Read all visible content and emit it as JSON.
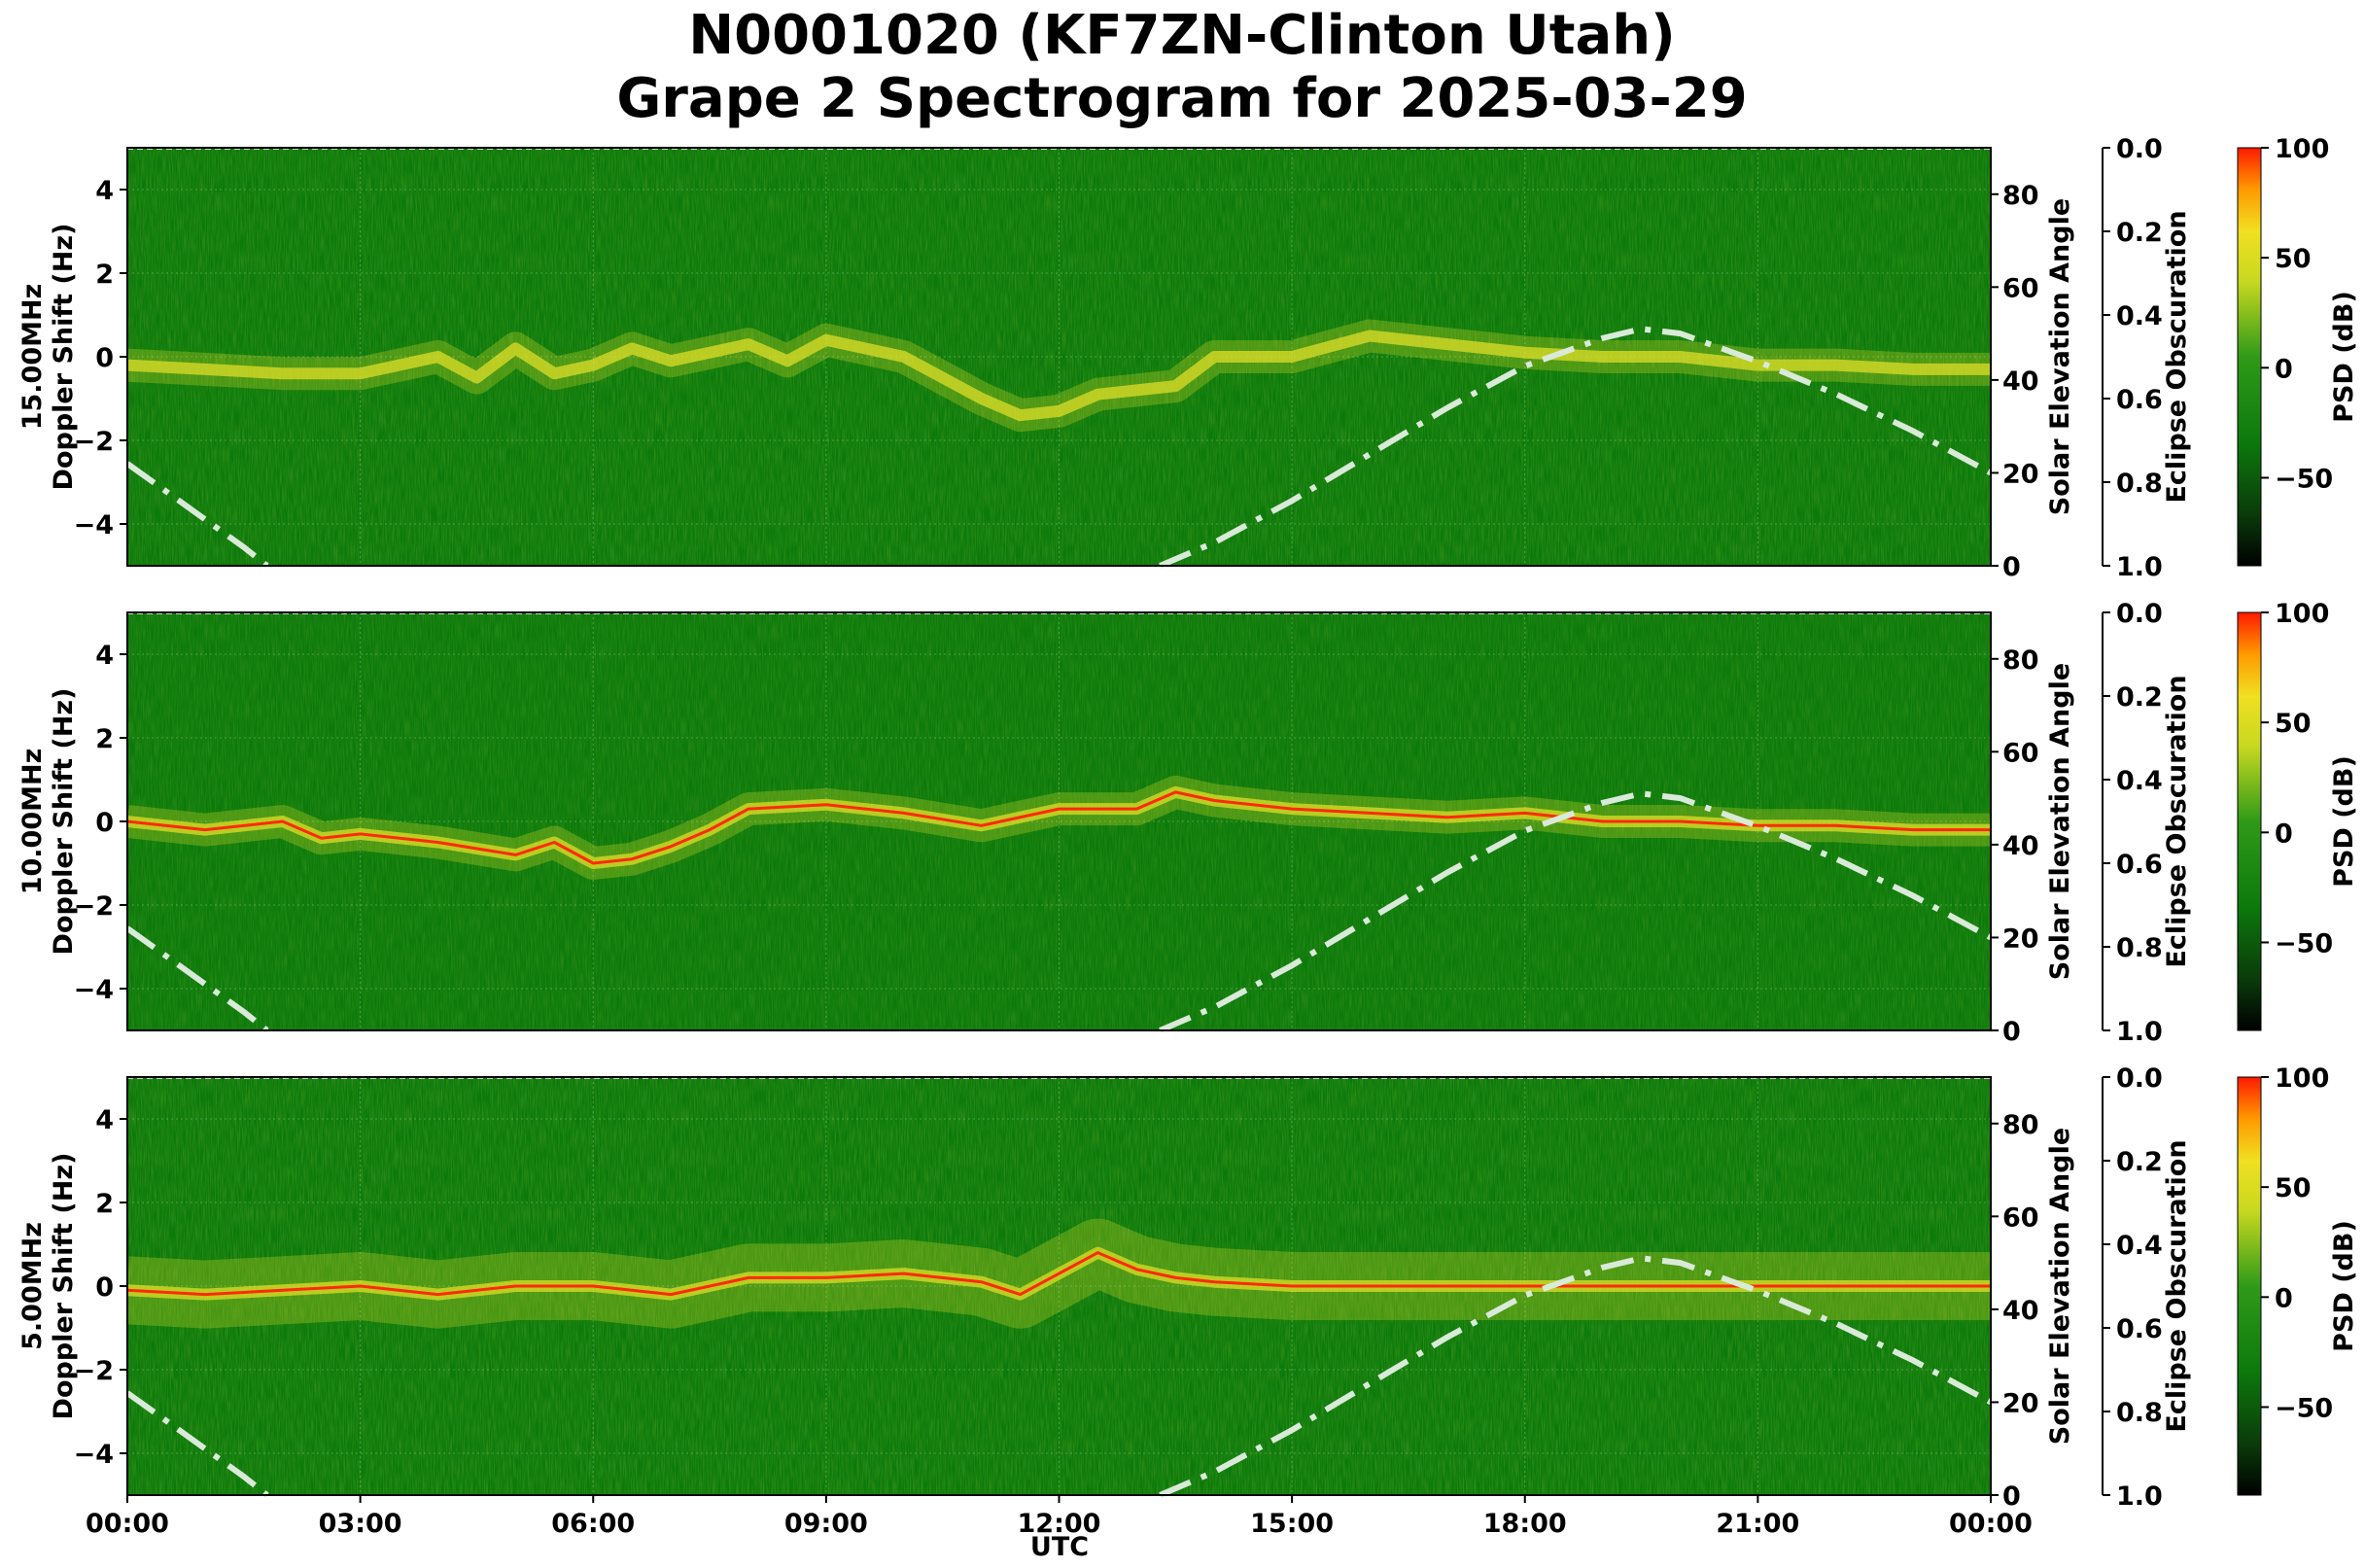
{
  "title_line1": "N0001020 (KF7ZN-Clinton Utah)",
  "title_line2": "Grape 2 Spectrogram for 2025-03-29",
  "x_axis_label": "UTC",
  "x_tick_labels": [
    "00:00",
    "03:00",
    "06:00",
    "09:00",
    "12:00",
    "15:00",
    "18:00",
    "21:00",
    "00:00"
  ],
  "colors": {
    "background_green": "#0b7a0b",
    "signal_yellow": "#e8e22a",
    "signal_red": "#ff2a00",
    "solar_curve": "#d9ead9"
  },
  "chart_data": [
    {
      "type": "heatmap",
      "frequency_label": "15.00MHz",
      "ylabel": "Doppler Shift (Hz)",
      "ylim": [
        -5,
        5
      ],
      "y_ticks": [
        4,
        2,
        0,
        -2,
        -4
      ],
      "x_hours_range": [
        0,
        24
      ],
      "right_axis": {
        "label": "Solar Elevation Angle",
        "ylim": [
          0,
          90
        ],
        "ticks": [
          0,
          20,
          40,
          60,
          80
        ]
      },
      "eclipse_axis": {
        "label": "Eclipse Obscuration",
        "ylim": [
          1.0,
          0.0
        ],
        "ticks": [
          "0.0",
          "0.2",
          "0.4",
          "0.6",
          "0.8",
          "1.0"
        ]
      },
      "colorbar": {
        "label": "PSD (dB)",
        "range": [
          -90,
          100
        ],
        "ticks": [
          "100",
          "50",
          "0",
          "−50"
        ]
      },
      "doppler_trace": {
        "hours": [
          0,
          1,
          2,
          3,
          3.5,
          4,
          4.5,
          5,
          5.5,
          6,
          6.5,
          7,
          7.5,
          8,
          8.5,
          9,
          9.5,
          10,
          10.5,
          11,
          11.5,
          12,
          12.5,
          13,
          13.5,
          14,
          15,
          16,
          17,
          18,
          19,
          20,
          21,
          22,
          23,
          24
        ],
        "hz": [
          -0.2,
          -0.3,
          -0.4,
          -0.4,
          -0.2,
          0.0,
          -0.5,
          0.2,
          -0.4,
          -0.2,
          0.2,
          -0.1,
          0.1,
          0.3,
          -0.1,
          0.4,
          0.2,
          0.0,
          -0.5,
          -1.0,
          -1.4,
          -1.3,
          -0.9,
          -0.8,
          -0.7,
          0.0,
          0.0,
          0.5,
          0.3,
          0.1,
          0.0,
          0.0,
          -0.2,
          -0.2,
          -0.3,
          -0.3
        ]
      }
    },
    {
      "type": "heatmap",
      "frequency_label": "10.00MHz",
      "ylabel": "Doppler Shift (Hz)",
      "ylim": [
        -5,
        5
      ],
      "y_ticks": [
        4,
        2,
        0,
        -2,
        -4
      ],
      "x_hours_range": [
        0,
        24
      ],
      "right_axis": {
        "label": "Solar Elevation Angle",
        "ylim": [
          0,
          90
        ],
        "ticks": [
          0,
          20,
          40,
          60,
          80
        ]
      },
      "eclipse_axis": {
        "label": "Eclipse Obscuration",
        "ylim": [
          1.0,
          0.0
        ],
        "ticks": [
          "0.0",
          "0.2",
          "0.4",
          "0.6",
          "0.8",
          "1.0"
        ]
      },
      "colorbar": {
        "label": "PSD (dB)",
        "range": [
          -90,
          100
        ],
        "ticks": [
          "100",
          "50",
          "0",
          "−50"
        ]
      },
      "doppler_trace": {
        "hours": [
          0,
          1,
          2,
          2.5,
          3,
          4,
          5,
          5.5,
          6,
          6.5,
          7,
          7.5,
          8,
          9,
          10,
          11,
          12,
          13,
          13.5,
          14,
          15,
          16,
          17,
          18,
          19,
          20,
          21,
          22,
          23,
          24
        ],
        "hz": [
          0.0,
          -0.2,
          0.0,
          -0.4,
          -0.3,
          -0.5,
          -0.8,
          -0.5,
          -1.0,
          -0.9,
          -0.6,
          -0.2,
          0.3,
          0.4,
          0.2,
          -0.1,
          0.3,
          0.3,
          0.7,
          0.5,
          0.3,
          0.2,
          0.1,
          0.2,
          0.0,
          0.0,
          -0.1,
          -0.1,
          -0.2,
          -0.2
        ]
      }
    },
    {
      "type": "heatmap",
      "frequency_label": "5.00MHz",
      "ylabel": "Doppler Shift (Hz)",
      "ylim": [
        -5,
        5
      ],
      "y_ticks": [
        4,
        2,
        0,
        -2,
        -4
      ],
      "x_hours_range": [
        0,
        24
      ],
      "right_axis": {
        "label": "Solar Elevation Angle",
        "ylim": [
          0,
          90
        ],
        "ticks": [
          0,
          20,
          40,
          60,
          80
        ]
      },
      "eclipse_axis": {
        "label": "Eclipse Obscuration",
        "ylim": [
          1.0,
          0.0
        ],
        "ticks": [
          "0.0",
          "0.2",
          "0.4",
          "0.6",
          "0.8",
          "1.0"
        ]
      },
      "colorbar": {
        "label": "PSD (dB)",
        "range": [
          -90,
          100
        ],
        "ticks": [
          "100",
          "50",
          "0",
          "−50"
        ]
      },
      "doppler_trace": {
        "hours": [
          0,
          1,
          2,
          3,
          4,
          5,
          6,
          7,
          8,
          9,
          10,
          11,
          11.5,
          12,
          12.5,
          13,
          13.5,
          14,
          15,
          16,
          17,
          18,
          19,
          20,
          21,
          22,
          23,
          24
        ],
        "hz": [
          -0.1,
          -0.2,
          -0.1,
          0.0,
          -0.2,
          0.0,
          0.0,
          -0.2,
          0.2,
          0.2,
          0.3,
          0.1,
          -0.2,
          0.3,
          0.8,
          0.4,
          0.2,
          0.1,
          0.0,
          0.0,
          0.0,
          0.0,
          0.0,
          0.0,
          0.0,
          0.0,
          0.0,
          0.0
        ]
      }
    }
  ],
  "solar_elevation_curve": {
    "hours": [
      0,
      0.5,
      1,
      1.5,
      1.8,
      13.3,
      14,
      15,
      16,
      17,
      18,
      19,
      19.5,
      20,
      21,
      22,
      23,
      24
    ],
    "degrees": [
      22,
      16,
      10,
      4,
      0,
      0,
      5,
      14,
      24,
      34,
      43,
      49,
      51,
      50,
      44,
      37,
      29,
      20
    ]
  }
}
